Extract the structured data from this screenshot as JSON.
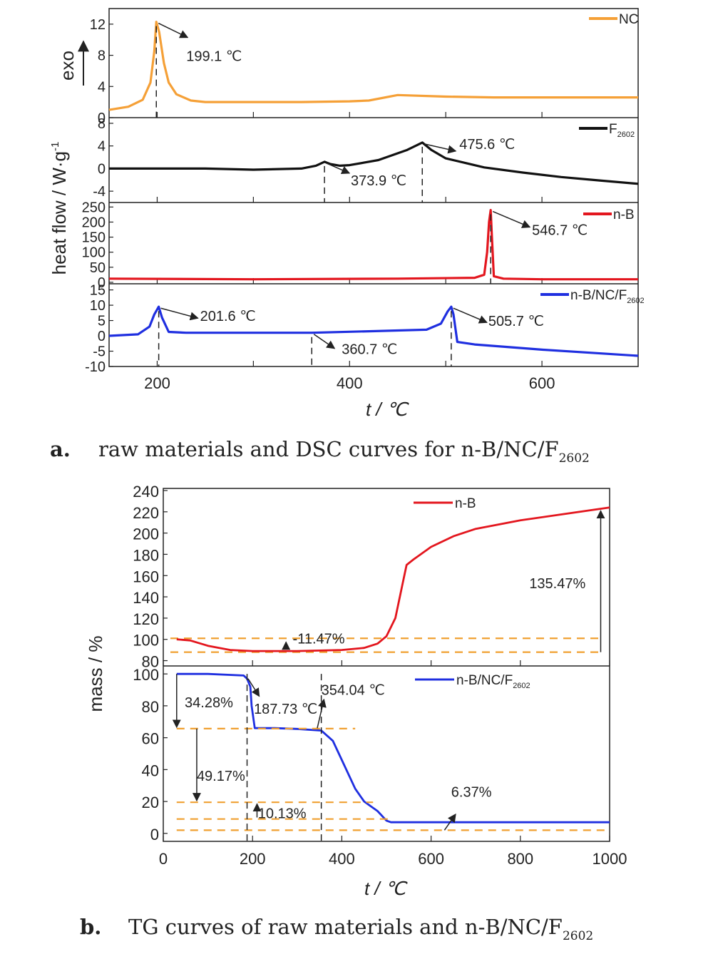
{
  "captions": {
    "a_label": "a.",
    "a_text": "raw materials and DSC curves for n-B/NC/F",
    "a_sub": "2602",
    "b_label": "b.",
    "b_text": "TG curves of raw materials and n-B/NC/F",
    "b_sub": "2602"
  },
  "colors": {
    "nc": "#f5a037",
    "f2602": "#111111",
    "nb": "#e3161e",
    "composite": "#1f2fe0",
    "guide": "#f0a030"
  },
  "chart_data": [
    {
      "type": "line",
      "id": "dsc",
      "xlabel": "t / ℃",
      "xlim": [
        150,
        700
      ],
      "x_ticks": [
        200,
        400,
        600
      ],
      "ylabel_main": "heat flow / W·g",
      "ylabel_sup": "-1",
      "ylabel_exo": "exo",
      "panels": [
        {
          "name": "NC",
          "color_key": "nc",
          "ylim": [
            0,
            14
          ],
          "y_ticks": [
            0,
            4,
            8,
            12
          ],
          "x": [
            150,
            170,
            185,
            193,
            197,
            199.1,
            202,
            207,
            212,
            220,
            235,
            250,
            300,
            350,
            400,
            420,
            450,
            500,
            550,
            600,
            650,
            700
          ],
          "y": [
            1,
            1.4,
            2.3,
            4.5,
            8.5,
            12.3,
            11,
            7,
            4.5,
            3,
            2.2,
            2,
            2,
            2,
            2.1,
            2.2,
            2.9,
            2.7,
            2.6,
            2.6,
            2.6,
            2.6
          ],
          "annotations": [
            {
              "text": "199.1 ℃",
              "x": 199.1,
              "y": 12.3
            }
          ]
        },
        {
          "name": "F",
          "name_sub": "2602",
          "color_key": "f2602",
          "ylim": [
            -6,
            9
          ],
          "y_ticks": [
            -4,
            0,
            4,
            8
          ],
          "x": [
            150,
            250,
            300,
            350,
            365,
            373.9,
            380,
            390,
            400,
            430,
            460,
            475.6,
            485,
            500,
            540,
            580,
            620,
            660,
            700
          ],
          "y": [
            0,
            0,
            -0.2,
            0,
            0.5,
            1.2,
            0.8,
            0.5,
            0.6,
            1.5,
            3.3,
            4.6,
            3.3,
            1.8,
            0.2,
            -0.7,
            -1.5,
            -2.1,
            -2.7
          ],
          "annotations": [
            {
              "text": "373.9 ℃",
              "x": 373.9,
              "y": 1.2
            },
            {
              "text": "475.6 ℃",
              "x": 475.6,
              "y": 4.6
            }
          ]
        },
        {
          "name": "n-B",
          "color_key": "nb",
          "ylim": [
            -5,
            265
          ],
          "y_ticks": [
            0,
            50,
            100,
            150,
            200,
            250
          ],
          "x": [
            150,
            300,
            450,
            530,
            540,
            543,
            545,
            546.7,
            548,
            550,
            560,
            600,
            700
          ],
          "y": [
            12,
            10,
            12,
            15,
            25,
            100,
            200,
            240,
            150,
            20,
            12,
            10,
            10
          ],
          "annotations": [
            {
              "text": "546.7 ℃",
              "x": 546.7,
              "y": 240
            }
          ]
        },
        {
          "name": "n-B/NC/F",
          "name_sub": "2602",
          "color_key": "composite",
          "ylim": [
            -10,
            17
          ],
          "y_ticks": [
            -10,
            -5,
            0,
            5,
            10,
            15
          ],
          "x": [
            150,
            180,
            192,
            197,
            201.6,
            205,
            212,
            230,
            300,
            360.7,
            420,
            480,
            495,
            502,
            505.7,
            508,
            512,
            530,
            600,
            650,
            700
          ],
          "y": [
            0,
            0.5,
            3,
            7,
            9.5,
            6,
            1.3,
            1,
            1,
            1,
            1.5,
            2,
            4,
            8,
            9.5,
            7,
            -2,
            -2.8,
            -4.5,
            -5.5,
            -6.5
          ],
          "annotations": [
            {
              "text": "201.6 ℃",
              "x": 201.6,
              "y": 9.5
            },
            {
              "text": "360.7 ℃",
              "x": 360.7,
              "y": 1
            },
            {
              "text": "505.7 ℃",
              "x": 505.7,
              "y": 9.5
            }
          ]
        }
      ]
    },
    {
      "type": "line",
      "id": "tg",
      "xlabel": "t / ℃",
      "ylabel": "mass / %",
      "xlim": [
        0,
        1000
      ],
      "x_ticks": [
        0,
        200,
        400,
        600,
        800,
        1000
      ],
      "panels": [
        {
          "name": "n-B",
          "color_key": "nb",
          "ylim": [
            75,
            242
          ],
          "y_ticks": [
            80,
            100,
            120,
            140,
            160,
            180,
            200,
            220,
            240
          ],
          "x": [
            30,
            60,
            100,
            150,
            200,
            300,
            400,
            450,
            480,
            500,
            520,
            535,
            545,
            560,
            600,
            650,
            700,
            800,
            900,
            1000
          ],
          "y": [
            100,
            99,
            94,
            90,
            89,
            89,
            90,
            92,
            96,
            103,
            120,
            150,
            170,
            175,
            187,
            197,
            204,
            212,
            218,
            224
          ],
          "annotations": [
            {
              "text": "-11.47%"
            },
            {
              "text": "135.47%"
            }
          ]
        },
        {
          "name": "n-B/NC/F",
          "name_sub": "2602",
          "color_key": "composite",
          "ylim": [
            -5,
            105
          ],
          "y_ticks": [
            0,
            20,
            40,
            60,
            80,
            100
          ],
          "x": [
            30,
            100,
            180,
            187.73,
            195,
            198,
            205,
            250,
            300,
            354.04,
            380,
            400,
            430,
            450,
            480,
            500,
            510,
            600,
            800,
            1000
          ],
          "y": [
            100,
            100,
            99,
            97,
            92,
            80,
            66,
            66,
            65.5,
            64.5,
            58,
            46,
            28,
            20,
            14,
            8,
            7,
            7,
            7,
            7
          ],
          "annotations": [
            {
              "text": "34.28%"
            },
            {
              "text": "187.73 ℃"
            },
            {
              "text": "354.04 ℃"
            },
            {
              "text": "49.17%"
            },
            {
              "text": "10.13%"
            },
            {
              "text": "6.37%"
            }
          ]
        }
      ]
    }
  ]
}
